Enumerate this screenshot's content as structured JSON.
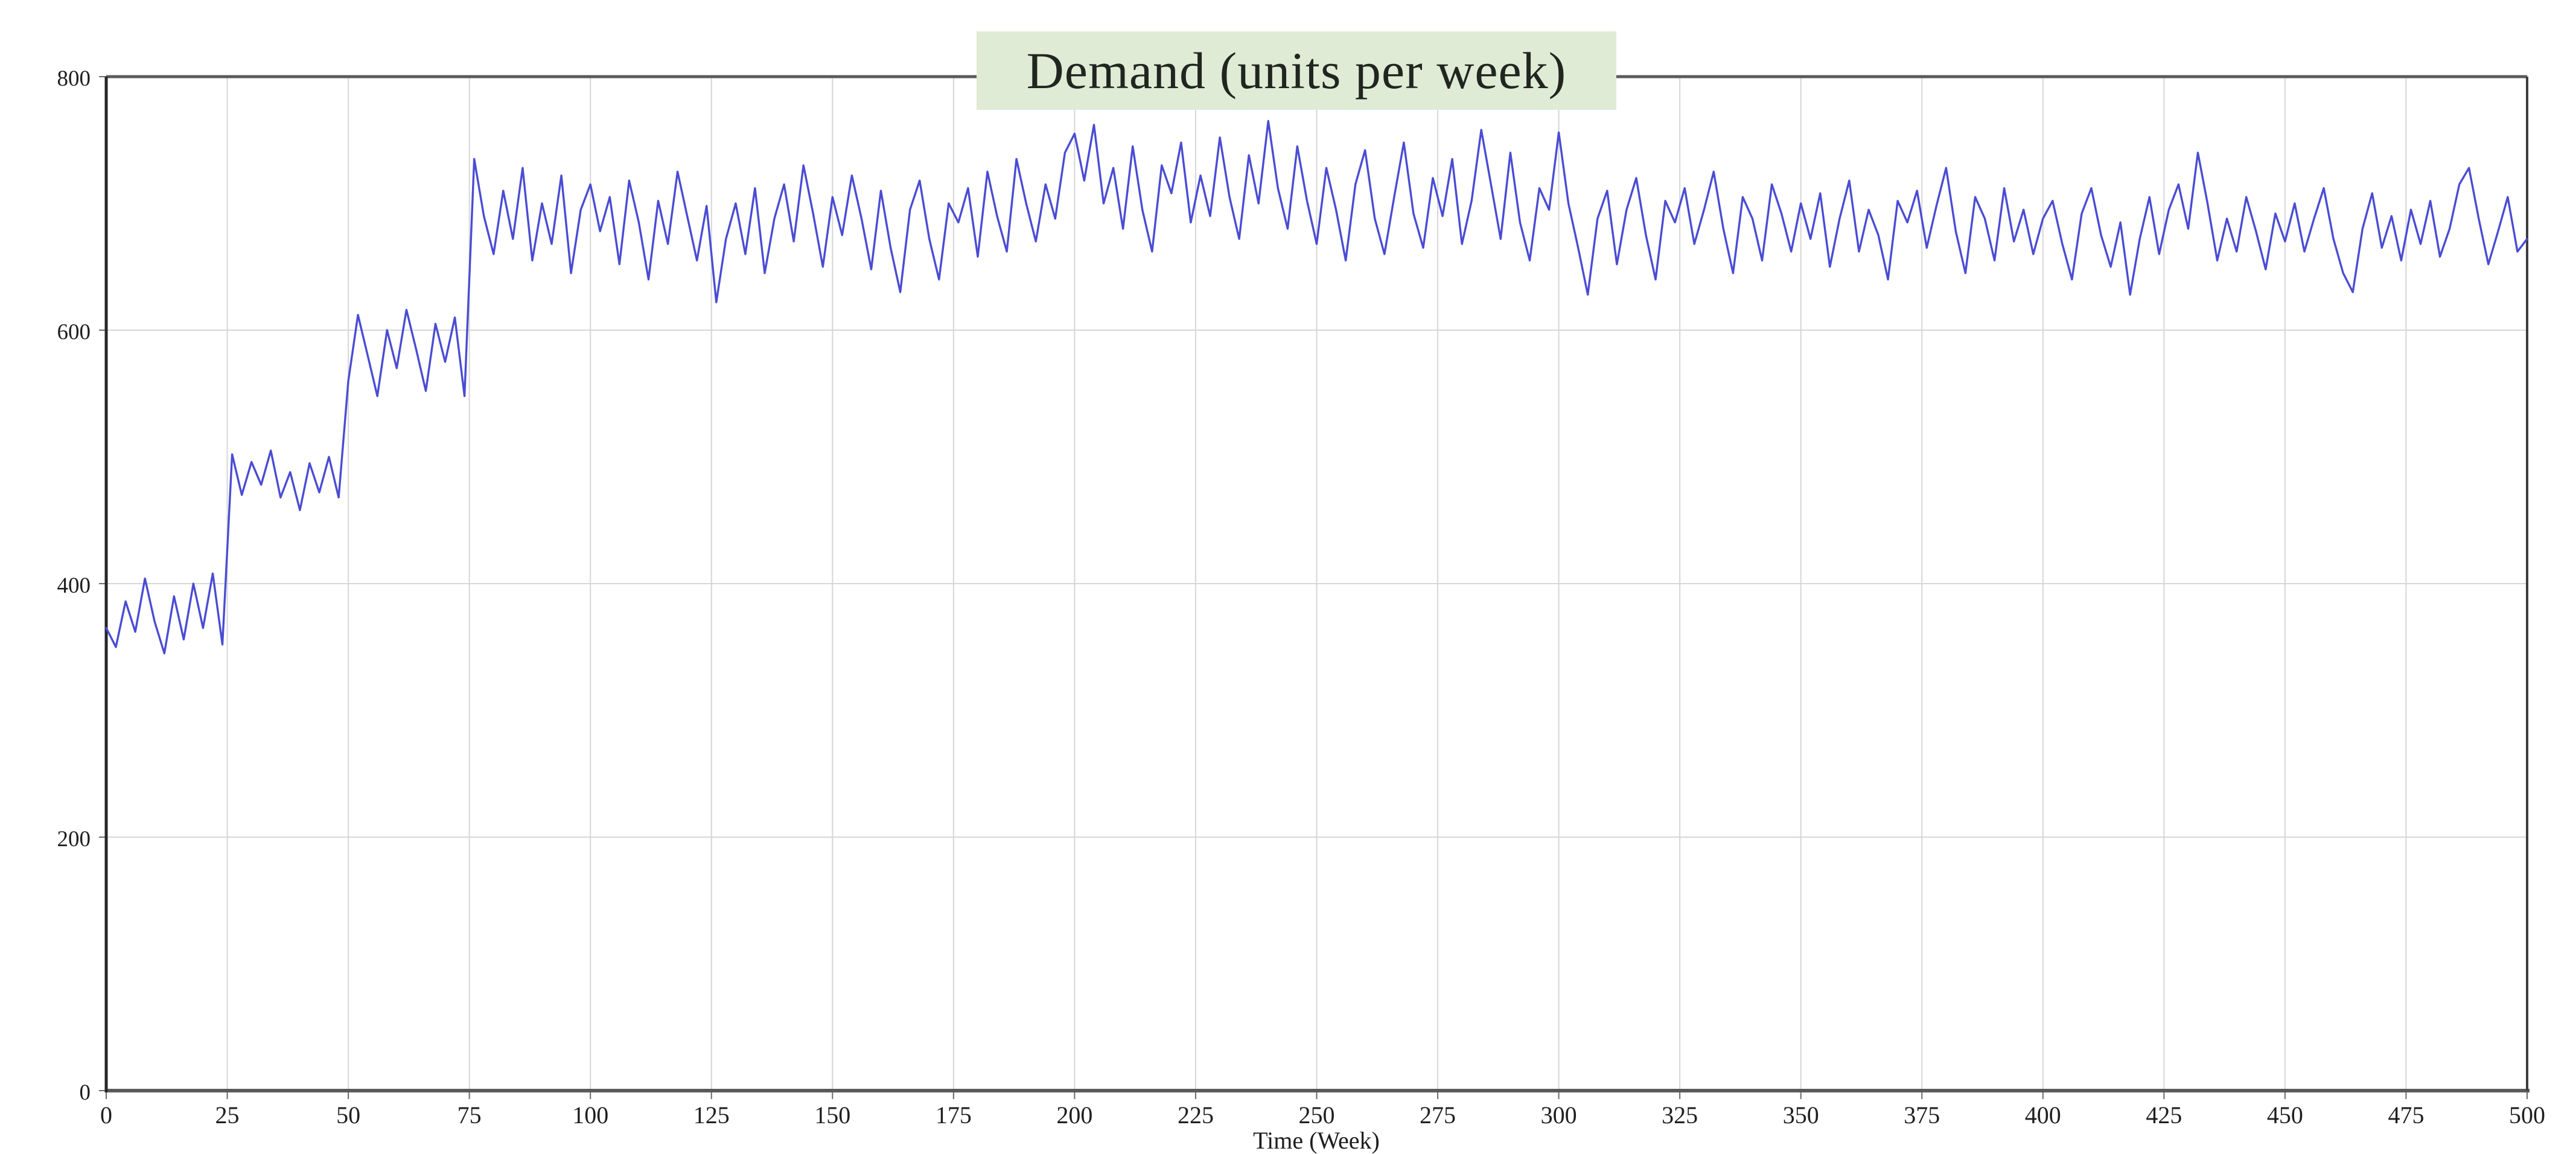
{
  "chart_data": {
    "type": "line",
    "title": "Demand (units per week)",
    "xlabel": "Time (Week)",
    "ylabel": "",
    "xlim": [
      0,
      500
    ],
    "ylim": [
      0,
      800
    ],
    "x_ticks": [
      0,
      25,
      50,
      75,
      100,
      125,
      150,
      175,
      200,
      225,
      250,
      275,
      300,
      325,
      350,
      375,
      400,
      425,
      450,
      475,
      500
    ],
    "y_ticks": [
      0,
      200,
      400,
      600,
      800
    ],
    "grid": true,
    "legend_position": "none",
    "colors": {
      "line": "#4a4cd4",
      "grid": "#d6d6d6",
      "frame": "#5a5a5a",
      "left_axis": "#262626",
      "right_frame": "#3d3d3d",
      "title_bg": "#dfebd5",
      "title_text": "#20261f",
      "label_text": "#1e1e1e"
    },
    "series": [
      {
        "name": "Demand",
        "x_start": 0,
        "x_step": 2,
        "values": [
          365,
          350,
          386,
          362,
          404,
          370,
          345,
          390,
          356,
          400,
          365,
          408,
          352,
          502,
          470,
          496,
          478,
          505,
          468,
          488,
          458,
          495,
          472,
          500,
          468,
          560,
          612,
          580,
          548,
          600,
          570,
          616,
          585,
          552,
          605,
          575,
          610,
          548,
          735,
          690,
          660,
          710,
          672,
          728,
          655,
          700,
          668,
          722,
          645,
          695,
          715,
          678,
          705,
          652,
          718,
          685,
          640,
          702,
          668,
          725,
          690,
          655,
          698,
          622,
          672,
          700,
          660,
          712,
          645,
          688,
          715,
          670,
          730,
          692,
          650,
          705,
          675,
          722,
          688,
          648,
          710,
          665,
          630,
          695,
          718,
          672,
          640,
          700,
          685,
          712,
          658,
          725,
          690,
          662,
          735,
          700,
          670,
          715,
          688,
          740,
          755,
          718,
          762,
          700,
          728,
          680,
          745,
          695,
          662,
          730,
          708,
          748,
          685,
          722,
          690,
          752,
          705,
          672,
          738,
          700,
          765,
          712,
          680,
          745,
          702,
          668,
          728,
          695,
          655,
          715,
          742,
          688,
          660,
          705,
          748,
          692,
          665,
          720,
          690,
          735,
          668,
          702,
          758,
          715,
          672,
          740,
          685,
          655,
          712,
          695,
          756,
          700,
          665,
          628,
          688,
          710,
          652,
          695,
          720,
          675,
          640,
          702,
          685,
          712,
          668,
          695,
          725,
          680,
          645,
          705,
          688,
          655,
          715,
          692,
          662,
          700,
          672,
          708,
          650,
          688,
          718,
          662,
          695,
          675,
          640,
          702,
          685,
          710,
          665,
          698,
          728,
          678,
          645,
          705,
          688,
          655,
          712,
          670,
          695,
          660,
          688,
          702,
          668,
          640,
          692,
          712,
          675,
          650,
          685,
          628,
          672,
          705,
          660,
          695,
          715,
          680,
          740,
          700,
          655,
          688,
          662,
          705,
          678,
          648,
          692,
          670,
          700,
          662,
          688,
          712,
          672,
          645,
          630,
          680,
          708,
          665,
          690,
          655,
          695,
          668,
          702,
          658,
          680,
          715,
          728,
          688,
          652,
          678,
          705,
          662,
          672
        ]
      }
    ]
  }
}
